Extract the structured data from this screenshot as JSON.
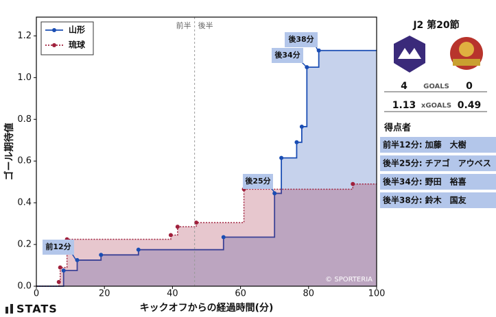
{
  "chart_data": {
    "type": "step",
    "xlabel": "キックオフからの経過時間(分)",
    "ylabel": "ゴール期待値",
    "xlim": [
      0,
      100
    ],
    "ylim": [
      0,
      1.29
    ],
    "xticks": [
      0,
      20,
      40,
      60,
      80,
      100
    ],
    "yticks": [
      {
        "value": 0,
        "label": "0.0"
      },
      0.2,
      0.4,
      0.6,
      0.8,
      {
        "value": 1,
        "label": "1.0"
      },
      1.2
    ],
    "legend": "upper left",
    "halftime_x": 46.5,
    "half_labels": [
      "前半",
      "後半"
    ],
    "series": [
      {
        "name": "山形",
        "color": "#1a4db3",
        "x": [
          8,
          12,
          19,
          30,
          55,
          70,
          72,
          76.5,
          78,
          79.5,
          83
        ],
        "values": [
          0.075,
          0.125,
          0.15,
          0.175,
          0.235,
          0.445,
          0.615,
          0.69,
          0.765,
          1.05,
          1.13
        ]
      },
      {
        "name": "琉球",
        "color": "#a0203c",
        "x": [
          6.6,
          7,
          9,
          39.5,
          41.5,
          47,
          61,
          93
        ],
        "values": [
          0.02,
          0.09,
          0.225,
          0.245,
          0.285,
          0.305,
          0.465,
          0.49
        ]
      }
    ],
    "annotations": [
      "前12分",
      "後25分",
      "後34分",
      "後38分"
    ],
    "credit": "© SPORTERIA"
  },
  "panel": {
    "title": "J2 第20節",
    "goals": [
      "4",
      "GOALS",
      "0"
    ],
    "xgoals": [
      "1.13",
      "xGOALS",
      "0.49"
    ],
    "scorers_title": "得点者",
    "scorers": [
      "前半12分: 加藤　大樹",
      "後半25分: チアゴ　アウベス",
      "後半34分: 野田　裕喜",
      "後半38分: 鈴木　国友"
    ]
  },
  "footer": {
    "brand": "STATS"
  }
}
